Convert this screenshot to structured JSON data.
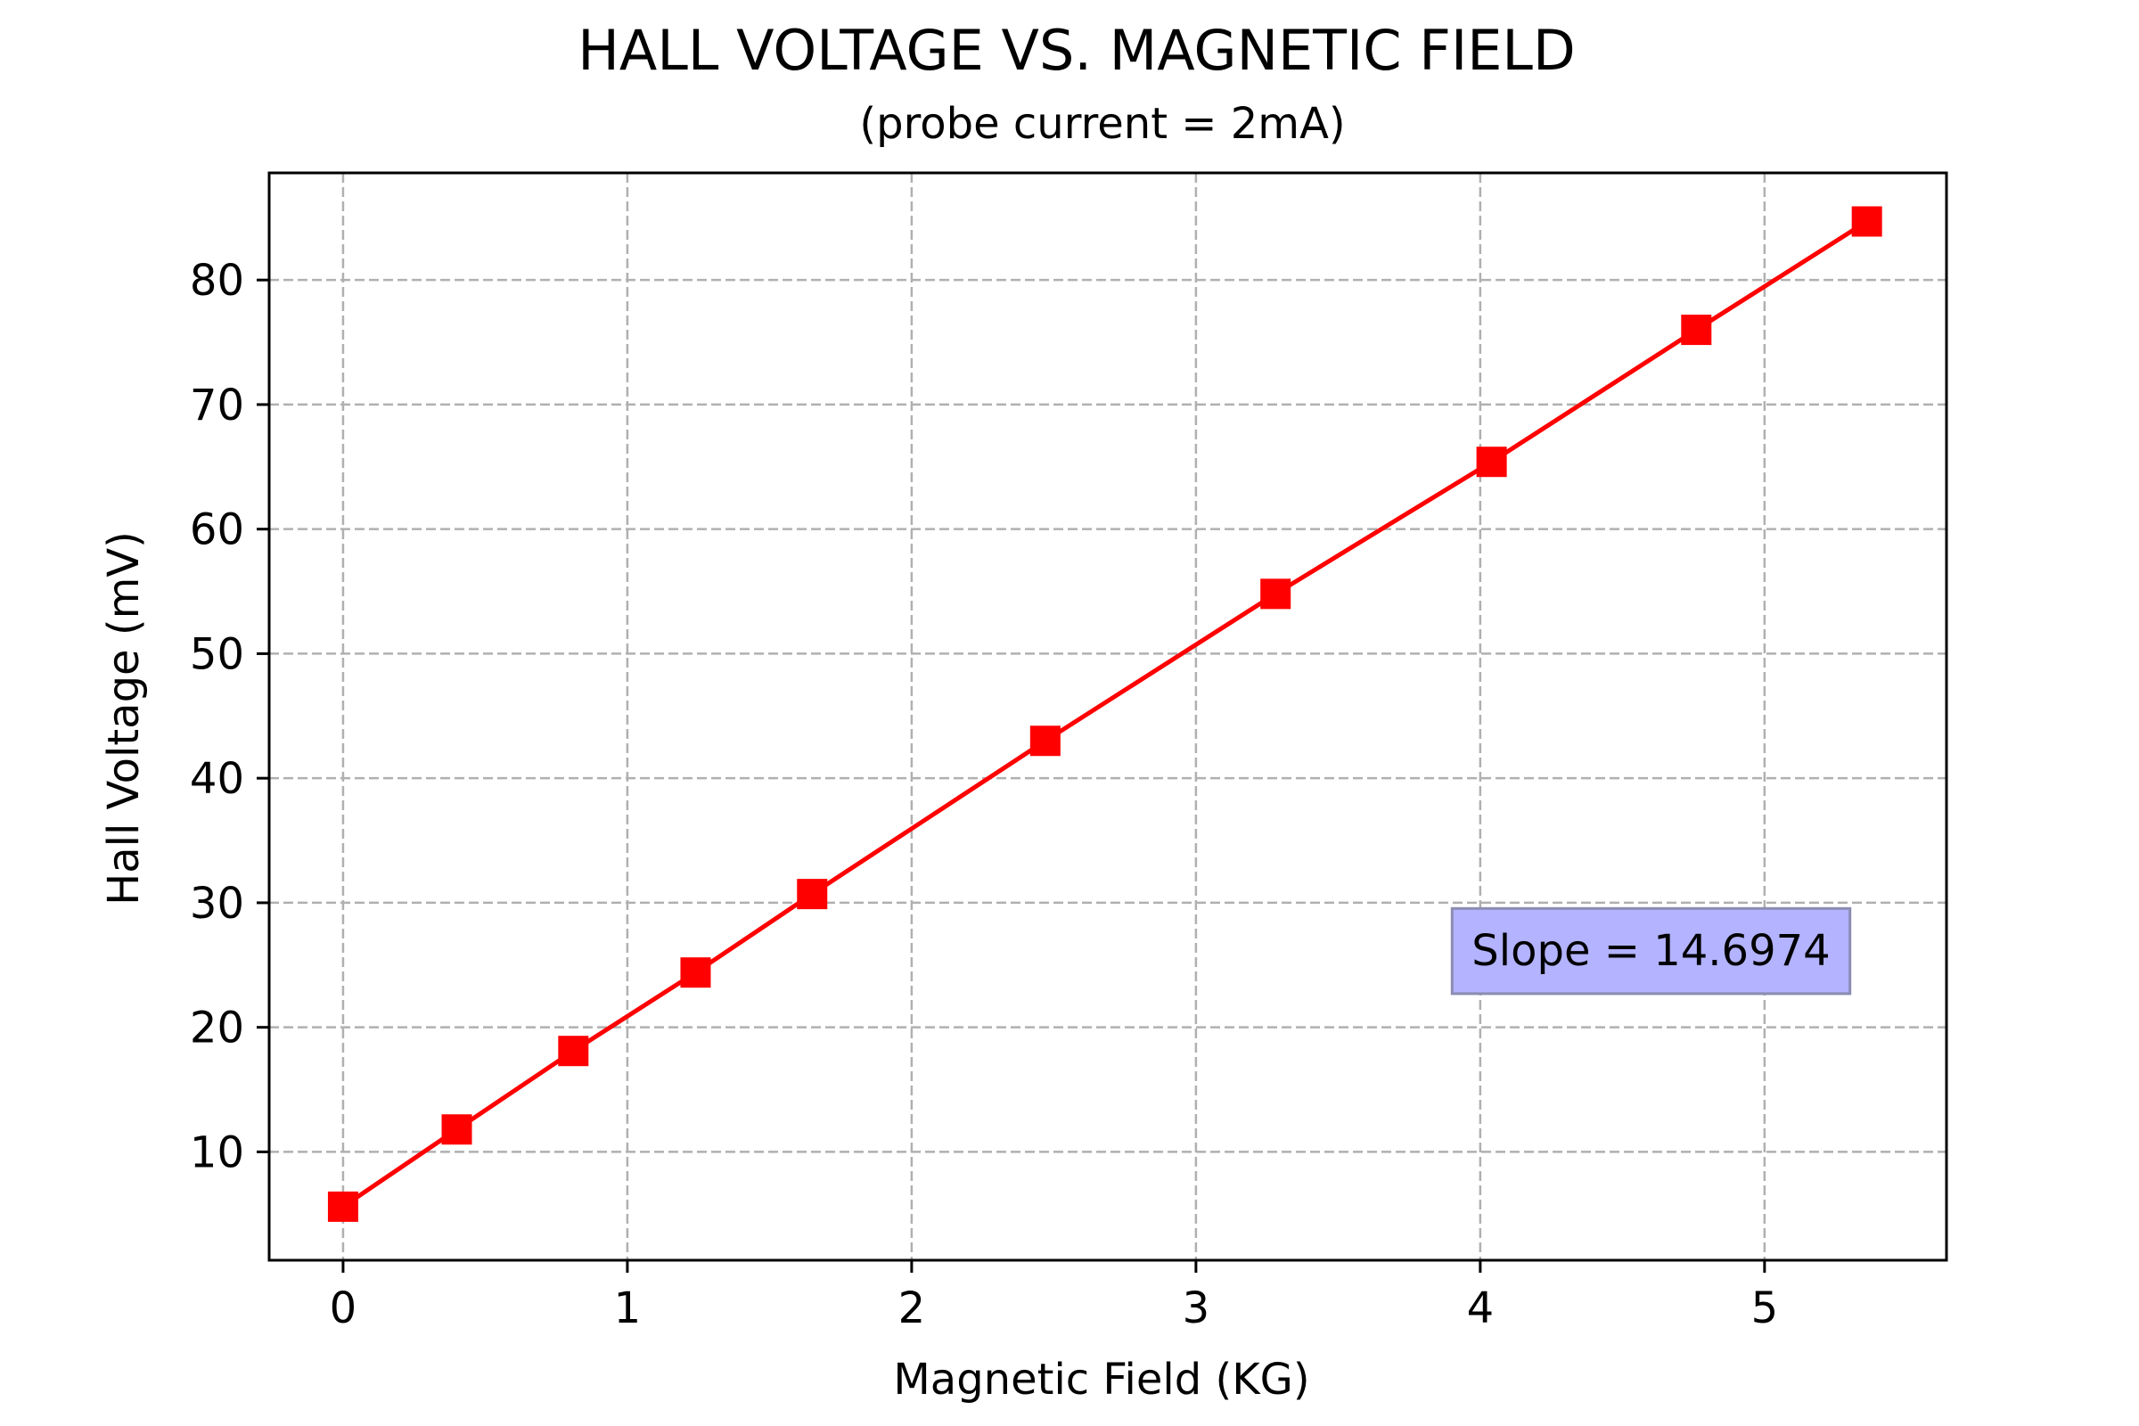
{
  "chart_data": {
    "type": "line",
    "title": "HALL VOLTAGE VS. MAGNETIC FIELD",
    "subtitle": "(probe current = 2mA)",
    "xlabel": "Magnetic Field (KG)",
    "ylabel": "Hall Voltage (mV)",
    "xlim": [
      -0.26,
      5.64
    ],
    "ylim": [
      1.3,
      88.6
    ],
    "xticks": [
      0,
      1,
      2,
      3,
      4,
      5
    ],
    "yticks": [
      10,
      20,
      30,
      40,
      50,
      60,
      70,
      80
    ],
    "grid": true,
    "series": [
      {
        "name": "Hall Voltage",
        "color": "#ff0000",
        "marker": "square",
        "x": [
          0.0,
          0.4,
          0.81,
          1.24,
          1.65,
          2.47,
          3.28,
          4.04,
          4.76,
          5.36
        ],
        "y": [
          5.6,
          11.8,
          18.1,
          24.4,
          30.7,
          43.0,
          54.8,
          65.4,
          76.0,
          84.7
        ]
      }
    ],
    "annotation": {
      "text": "Slope = 14.6974",
      "anchor_x": 3.97,
      "anchor_y": 25.0,
      "fill": "#b3b3ff",
      "border": "#8c8cb3"
    }
  }
}
